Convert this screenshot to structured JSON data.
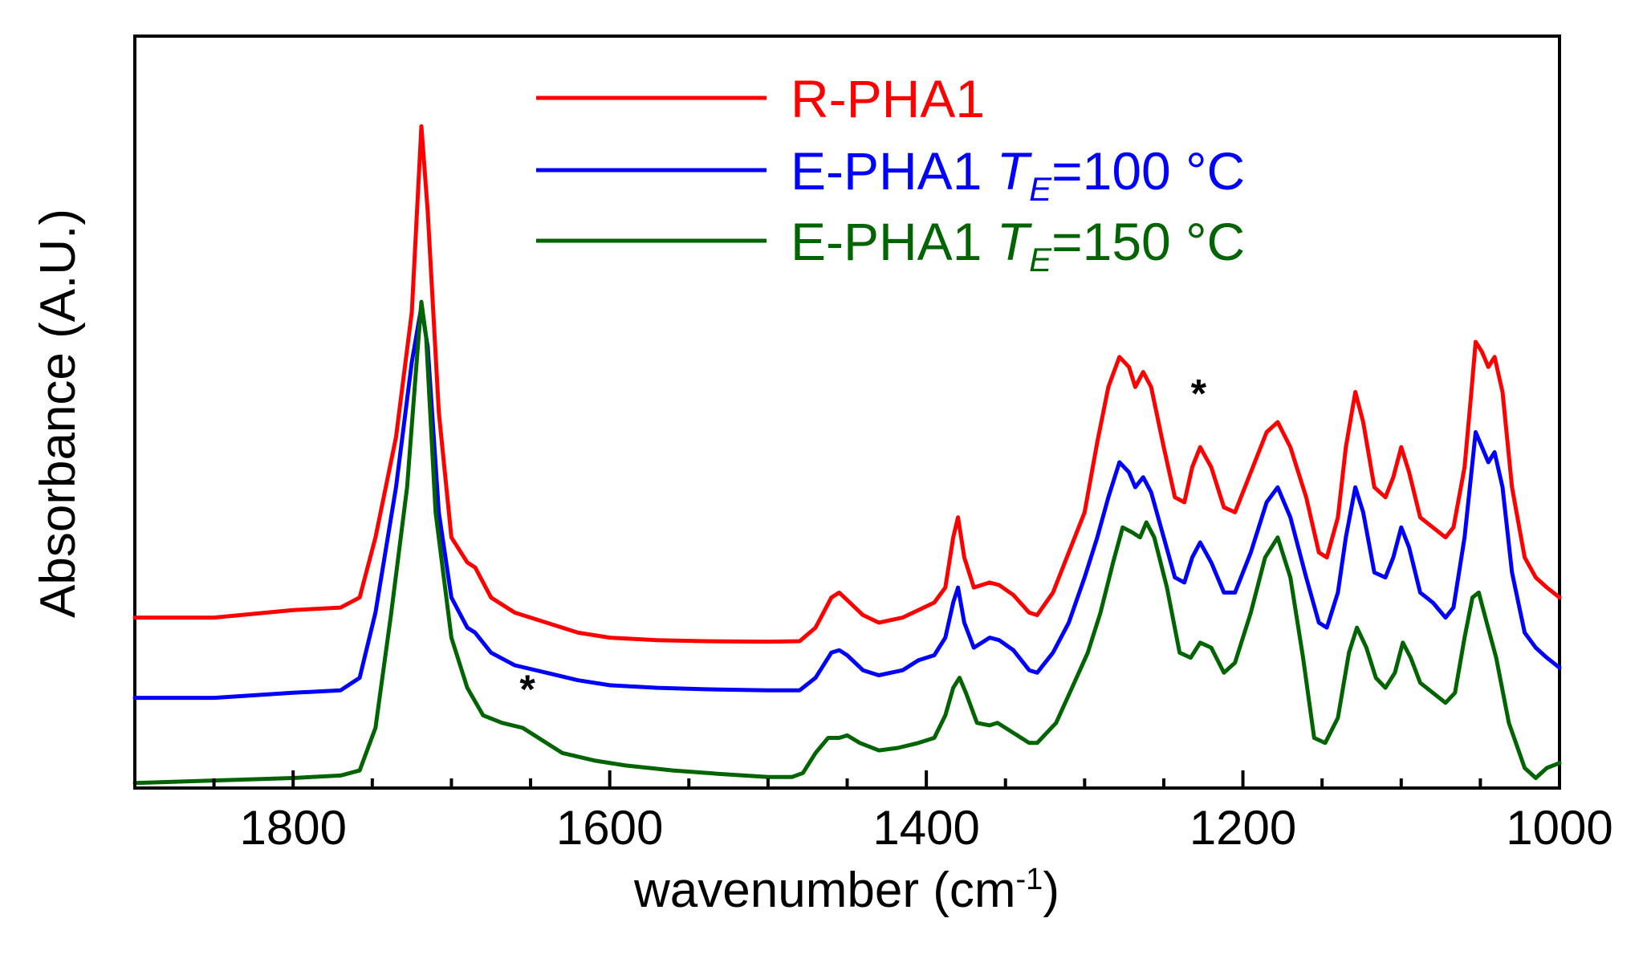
{
  "chart_data": {
    "type": "line",
    "xlabel": "wavenumber (cm",
    "xlabel_sup": "-1",
    "xlabel_close": ")",
    "ylabel": "Absorbance (A.U.)",
    "xlim": [
      1900,
      1000
    ],
    "x_reversed": true,
    "ylim": [
      0,
      1.5
    ],
    "y_ticks_labeled": false,
    "grid": false,
    "legend_position": "top-center",
    "x_ticks": [
      1800,
      1600,
      1400,
      1200,
      1000
    ],
    "x_tick_labels": [
      "1800",
      "1600",
      "1400",
      "1200",
      "1000"
    ],
    "series": [
      {
        "name": "R-PHA1",
        "label_main": "R-PHA1",
        "label_italic": "",
        "label_sub": "",
        "label_rest": "",
        "color": "#ff0000",
        "points": [
          [
            1900,
            0.34
          ],
          [
            1850,
            0.34
          ],
          [
            1800,
            0.355
          ],
          [
            1770,
            0.36
          ],
          [
            1758,
            0.38
          ],
          [
            1748,
            0.5
          ],
          [
            1735,
            0.7
          ],
          [
            1725,
            0.95
          ],
          [
            1719,
            1.32
          ],
          [
            1715,
            1.15
          ],
          [
            1708,
            0.75
          ],
          [
            1700,
            0.5
          ],
          [
            1690,
            0.45
          ],
          [
            1685,
            0.44
          ],
          [
            1675,
            0.38
          ],
          [
            1660,
            0.35
          ],
          [
            1640,
            0.33
          ],
          [
            1620,
            0.31
          ],
          [
            1600,
            0.3
          ],
          [
            1570,
            0.295
          ],
          [
            1540,
            0.293
          ],
          [
            1500,
            0.292
          ],
          [
            1480,
            0.293
          ],
          [
            1470,
            0.32
          ],
          [
            1460,
            0.38
          ],
          [
            1455,
            0.39
          ],
          [
            1450,
            0.375
          ],
          [
            1440,
            0.345
          ],
          [
            1430,
            0.33
          ],
          [
            1415,
            0.34
          ],
          [
            1405,
            0.355
          ],
          [
            1395,
            0.37
          ],
          [
            1388,
            0.4
          ],
          [
            1383,
            0.5
          ],
          [
            1380,
            0.54
          ],
          [
            1376,
            0.46
          ],
          [
            1370,
            0.4
          ],
          [
            1360,
            0.41
          ],
          [
            1354,
            0.405
          ],
          [
            1345,
            0.385
          ],
          [
            1335,
            0.35
          ],
          [
            1330,
            0.345
          ],
          [
            1320,
            0.39
          ],
          [
            1310,
            0.47
          ],
          [
            1300,
            0.55
          ],
          [
            1292,
            0.69
          ],
          [
            1285,
            0.8
          ],
          [
            1278,
            0.86
          ],
          [
            1272,
            0.84
          ],
          [
            1268,
            0.8
          ],
          [
            1263,
            0.83
          ],
          [
            1258,
            0.8
          ],
          [
            1250,
            0.68
          ],
          [
            1243,
            0.58
          ],
          [
            1237,
            0.57
          ],
          [
            1232,
            0.64
          ],
          [
            1227,
            0.68
          ],
          [
            1220,
            0.64
          ],
          [
            1212,
            0.56
          ],
          [
            1205,
            0.55
          ],
          [
            1195,
            0.63
          ],
          [
            1185,
            0.71
          ],
          [
            1178,
            0.73
          ],
          [
            1170,
            0.68
          ],
          [
            1160,
            0.58
          ],
          [
            1152,
            0.47
          ],
          [
            1147,
            0.46
          ],
          [
            1140,
            0.54
          ],
          [
            1135,
            0.68
          ],
          [
            1129,
            0.79
          ],
          [
            1124,
            0.73
          ],
          [
            1117,
            0.6
          ],
          [
            1110,
            0.58
          ],
          [
            1105,
            0.62
          ],
          [
            1100,
            0.68
          ],
          [
            1095,
            0.63
          ],
          [
            1088,
            0.54
          ],
          [
            1080,
            0.52
          ],
          [
            1072,
            0.5
          ],
          [
            1067,
            0.52
          ],
          [
            1060,
            0.64
          ],
          [
            1056,
            0.78
          ],
          [
            1053,
            0.89
          ],
          [
            1049,
            0.87
          ],
          [
            1045,
            0.84
          ],
          [
            1041,
            0.86
          ],
          [
            1036,
            0.79
          ],
          [
            1030,
            0.6
          ],
          [
            1022,
            0.46
          ],
          [
            1015,
            0.42
          ],
          [
            1008,
            0.4
          ],
          [
            1000,
            0.38
          ]
        ]
      },
      {
        "name": "E-PHA1 TE=100 °C",
        "label_main": "E-PHA1 ",
        "label_italic": "T",
        "label_sub": "E",
        "label_rest": "=100 °C",
        "color": "#0000ff",
        "points": [
          [
            1900,
            0.18
          ],
          [
            1850,
            0.18
          ],
          [
            1800,
            0.19
          ],
          [
            1770,
            0.195
          ],
          [
            1758,
            0.22
          ],
          [
            1748,
            0.35
          ],
          [
            1735,
            0.6
          ],
          [
            1725,
            0.85
          ],
          [
            1719,
            0.96
          ],
          [
            1715,
            0.88
          ],
          [
            1708,
            0.55
          ],
          [
            1700,
            0.38
          ],
          [
            1690,
            0.32
          ],
          [
            1685,
            0.31
          ],
          [
            1675,
            0.27
          ],
          [
            1660,
            0.245
          ],
          [
            1640,
            0.23
          ],
          [
            1620,
            0.215
          ],
          [
            1600,
            0.205
          ],
          [
            1570,
            0.2
          ],
          [
            1540,
            0.197
          ],
          [
            1500,
            0.195
          ],
          [
            1480,
            0.195
          ],
          [
            1470,
            0.22
          ],
          [
            1460,
            0.27
          ],
          [
            1455,
            0.275
          ],
          [
            1450,
            0.265
          ],
          [
            1440,
            0.235
          ],
          [
            1430,
            0.225
          ],
          [
            1415,
            0.235
          ],
          [
            1405,
            0.255
          ],
          [
            1395,
            0.265
          ],
          [
            1388,
            0.3
          ],
          [
            1383,
            0.37
          ],
          [
            1380,
            0.4
          ],
          [
            1376,
            0.33
          ],
          [
            1370,
            0.28
          ],
          [
            1360,
            0.3
          ],
          [
            1354,
            0.295
          ],
          [
            1345,
            0.275
          ],
          [
            1335,
            0.235
          ],
          [
            1330,
            0.23
          ],
          [
            1320,
            0.27
          ],
          [
            1310,
            0.33
          ],
          [
            1300,
            0.42
          ],
          [
            1292,
            0.5
          ],
          [
            1285,
            0.58
          ],
          [
            1278,
            0.65
          ],
          [
            1272,
            0.63
          ],
          [
            1268,
            0.6
          ],
          [
            1263,
            0.62
          ],
          [
            1258,
            0.59
          ],
          [
            1250,
            0.5
          ],
          [
            1243,
            0.42
          ],
          [
            1237,
            0.41
          ],
          [
            1232,
            0.46
          ],
          [
            1227,
            0.49
          ],
          [
            1220,
            0.45
          ],
          [
            1212,
            0.39
          ],
          [
            1205,
            0.39
          ],
          [
            1195,
            0.47
          ],
          [
            1185,
            0.57
          ],
          [
            1178,
            0.6
          ],
          [
            1170,
            0.54
          ],
          [
            1160,
            0.42
          ],
          [
            1152,
            0.33
          ],
          [
            1147,
            0.32
          ],
          [
            1140,
            0.39
          ],
          [
            1135,
            0.5
          ],
          [
            1129,
            0.6
          ],
          [
            1124,
            0.55
          ],
          [
            1117,
            0.43
          ],
          [
            1110,
            0.42
          ],
          [
            1105,
            0.46
          ],
          [
            1100,
            0.52
          ],
          [
            1095,
            0.48
          ],
          [
            1088,
            0.39
          ],
          [
            1080,
            0.37
          ],
          [
            1072,
            0.34
          ],
          [
            1067,
            0.36
          ],
          [
            1060,
            0.5
          ],
          [
            1056,
            0.62
          ],
          [
            1053,
            0.71
          ],
          [
            1049,
            0.68
          ],
          [
            1045,
            0.65
          ],
          [
            1041,
            0.67
          ],
          [
            1036,
            0.6
          ],
          [
            1030,
            0.43
          ],
          [
            1022,
            0.31
          ],
          [
            1015,
            0.28
          ],
          [
            1008,
            0.26
          ],
          [
            1000,
            0.24
          ]
        ]
      },
      {
        "name": "E-PHA1 TE=150 °C",
        "label_main": "E-PHA1 ",
        "label_italic": "T",
        "label_sub": "E",
        "label_rest": "=150 °C",
        "color": "#006400",
        "points": [
          [
            1900,
            0.01
          ],
          [
            1850,
            0.015
          ],
          [
            1800,
            0.02
          ],
          [
            1770,
            0.025
          ],
          [
            1758,
            0.035
          ],
          [
            1748,
            0.12
          ],
          [
            1738,
            0.35
          ],
          [
            1728,
            0.6
          ],
          [
            1722,
            0.85
          ],
          [
            1719,
            0.97
          ],
          [
            1716,
            0.9
          ],
          [
            1710,
            0.55
          ],
          [
            1700,
            0.3
          ],
          [
            1690,
            0.2
          ],
          [
            1680,
            0.145
          ],
          [
            1668,
            0.13
          ],
          [
            1655,
            0.12
          ],
          [
            1645,
            0.1
          ],
          [
            1630,
            0.07
          ],
          [
            1610,
            0.055
          ],
          [
            1590,
            0.045
          ],
          [
            1560,
            0.035
          ],
          [
            1530,
            0.028
          ],
          [
            1500,
            0.022
          ],
          [
            1485,
            0.022
          ],
          [
            1478,
            0.03
          ],
          [
            1470,
            0.07
          ],
          [
            1462,
            0.1
          ],
          [
            1455,
            0.1
          ],
          [
            1450,
            0.105
          ],
          [
            1442,
            0.09
          ],
          [
            1430,
            0.075
          ],
          [
            1418,
            0.08
          ],
          [
            1405,
            0.09
          ],
          [
            1395,
            0.1
          ],
          [
            1388,
            0.145
          ],
          [
            1383,
            0.2
          ],
          [
            1379,
            0.22
          ],
          [
            1375,
            0.19
          ],
          [
            1368,
            0.13
          ],
          [
            1360,
            0.125
          ],
          [
            1355,
            0.13
          ],
          [
            1345,
            0.11
          ],
          [
            1335,
            0.09
          ],
          [
            1330,
            0.09
          ],
          [
            1318,
            0.13
          ],
          [
            1308,
            0.2
          ],
          [
            1298,
            0.27
          ],
          [
            1290,
            0.35
          ],
          [
            1282,
            0.45
          ],
          [
            1276,
            0.52
          ],
          [
            1270,
            0.51
          ],
          [
            1265,
            0.5
          ],
          [
            1261,
            0.53
          ],
          [
            1256,
            0.5
          ],
          [
            1248,
            0.4
          ],
          [
            1240,
            0.27
          ],
          [
            1233,
            0.26
          ],
          [
            1227,
            0.29
          ],
          [
            1220,
            0.28
          ],
          [
            1212,
            0.23
          ],
          [
            1205,
            0.25
          ],
          [
            1195,
            0.35
          ],
          [
            1186,
            0.46
          ],
          [
            1178,
            0.5
          ],
          [
            1170,
            0.42
          ],
          [
            1162,
            0.26
          ],
          [
            1155,
            0.1
          ],
          [
            1148,
            0.09
          ],
          [
            1140,
            0.14
          ],
          [
            1133,
            0.27
          ],
          [
            1128,
            0.32
          ],
          [
            1122,
            0.28
          ],
          [
            1116,
            0.22
          ],
          [
            1110,
            0.2
          ],
          [
            1104,
            0.23
          ],
          [
            1099,
            0.29
          ],
          [
            1094,
            0.26
          ],
          [
            1088,
            0.21
          ],
          [
            1080,
            0.19
          ],
          [
            1072,
            0.17
          ],
          [
            1066,
            0.19
          ],
          [
            1060,
            0.3
          ],
          [
            1055,
            0.38
          ],
          [
            1051,
            0.39
          ],
          [
            1046,
            0.33
          ],
          [
            1040,
            0.26
          ],
          [
            1032,
            0.13
          ],
          [
            1022,
            0.04
          ],
          [
            1015,
            0.02
          ],
          [
            1008,
            0.04
          ],
          [
            1000,
            0.05
          ]
        ]
      }
    ],
    "annotations": [
      {
        "text": "*",
        "x": 1228,
        "y": 0.76
      },
      {
        "text": "*",
        "x": 1652,
        "y": 0.17
      }
    ]
  }
}
